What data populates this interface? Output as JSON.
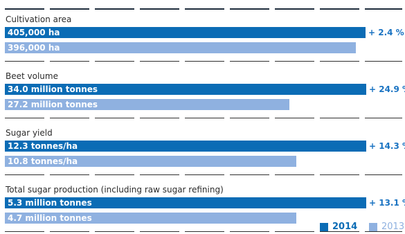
{
  "colors": {
    "series_2014": "#0b6cb5",
    "series_2013": "#8fb1e0",
    "change_text": "#1a73c2",
    "rule_thick": "#1f2d3d",
    "rule_thin": "#2f2f2f",
    "title_text": "#2b2b2b"
  },
  "legend": {
    "items": [
      {
        "label": "2014",
        "color": "#0b6cb5"
      },
      {
        "label": "2013",
        "color": "#8fb1e0"
      }
    ],
    "position": "bottom-right"
  },
  "chart_data": {
    "type": "bar",
    "orientation": "horizontal",
    "series": [
      {
        "name": "2014",
        "values": [
          405000,
          34.0,
          12.3,
          5.3
        ]
      },
      {
        "name": "2013",
        "values": [
          396000,
          27.2,
          10.8,
          4.7
        ]
      }
    ],
    "groups": [
      {
        "title": "Cultivation area",
        "change": "+ 2.4 %",
        "bars": [
          {
            "label": "405,000 ha",
            "value": 405000,
            "fraction": 0.907
          },
          {
            "label": "396,000 ha",
            "value": 396000,
            "fraction": 0.884
          }
        ]
      },
      {
        "title": "Beet volume",
        "change": "+ 24.9 %",
        "bars": [
          {
            "label": "34.0 million tonnes",
            "value": 34.0,
            "fraction": 0.909
          },
          {
            "label": "27.2 million tonnes",
            "value": 27.2,
            "fraction": 0.716
          }
        ]
      },
      {
        "title": "Sugar yield",
        "change": "+ 14.3 %",
        "bars": [
          {
            "label": "12.3 tonnes/ha",
            "value": 12.3,
            "fraction": 0.909
          },
          {
            "label": "10.8 tonnes/ha",
            "value": 10.8,
            "fraction": 0.733
          }
        ]
      },
      {
        "title": "Total sugar production (including raw sugar refining)",
        "change": "+ 13.1 %",
        "bars": [
          {
            "label": "5.3 million tonnes",
            "value": 5.3,
            "fraction": 0.909
          },
          {
            "label": "4.7 million tonnes",
            "value": 4.7,
            "fraction": 0.733
          }
        ]
      }
    ]
  }
}
